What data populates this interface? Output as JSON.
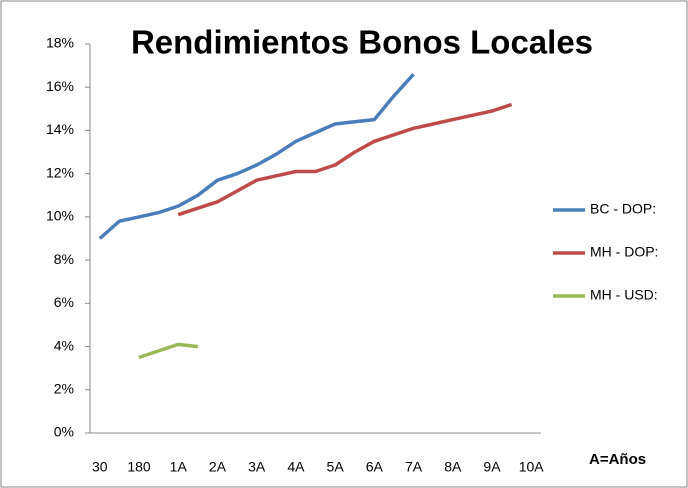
{
  "chart_data": {
    "type": "line",
    "title": "Rendimientos Bonos Locales",
    "annotation": "A=Años",
    "categories": [
      "30",
      null,
      "180",
      null,
      "1A",
      null,
      "2A",
      null,
      "3A",
      null,
      "4A",
      null,
      "5A",
      null,
      "6A",
      null,
      "7A",
      null,
      "8A",
      null,
      "9A",
      null,
      "10A"
    ],
    "series": [
      {
        "name": "BC - DOP:",
        "color": "#4a7ebb",
        "values": [
          9.0,
          9.8,
          10.0,
          10.2,
          10.5,
          11.0,
          11.7,
          12.0,
          12.4,
          12.9,
          13.5,
          13.9,
          14.3,
          14.4,
          14.5,
          15.6,
          16.6,
          null,
          null,
          null,
          null,
          null,
          null
        ]
      },
      {
        "name": "MH - DOP:",
        "color": "#be4b48",
        "values": [
          null,
          null,
          null,
          null,
          10.1,
          10.4,
          10.7,
          11.2,
          11.7,
          11.9,
          12.1,
          12.1,
          12.4,
          13.0,
          13.5,
          13.8,
          14.1,
          14.3,
          14.5,
          14.7,
          14.9,
          15.2,
          null
        ]
      },
      {
        "name": "MH - USD:",
        "color": "#98b954",
        "values": [
          null,
          null,
          3.5,
          3.8,
          4.1,
          4.0,
          null,
          null,
          null,
          null,
          null,
          null,
          null,
          null,
          null,
          null,
          null,
          null,
          null,
          null,
          null,
          null,
          null
        ]
      }
    ],
    "ylim": [
      0,
      18
    ],
    "yticks": [
      {
        "value": 0,
        "label": "0%"
      },
      {
        "value": 2,
        "label": "2%"
      },
      {
        "value": 4,
        "label": "4%"
      },
      {
        "value": 6,
        "label": "6%"
      },
      {
        "value": 8,
        "label": "8%"
      },
      {
        "value": 10,
        "label": "10%"
      },
      {
        "value": 12,
        "label": "12%"
      },
      {
        "value": 14,
        "label": "14%"
      },
      {
        "value": 16,
        "label": "16%"
      },
      {
        "value": 18,
        "label": "18%"
      }
    ],
    "grid": false,
    "legend": "right"
  }
}
